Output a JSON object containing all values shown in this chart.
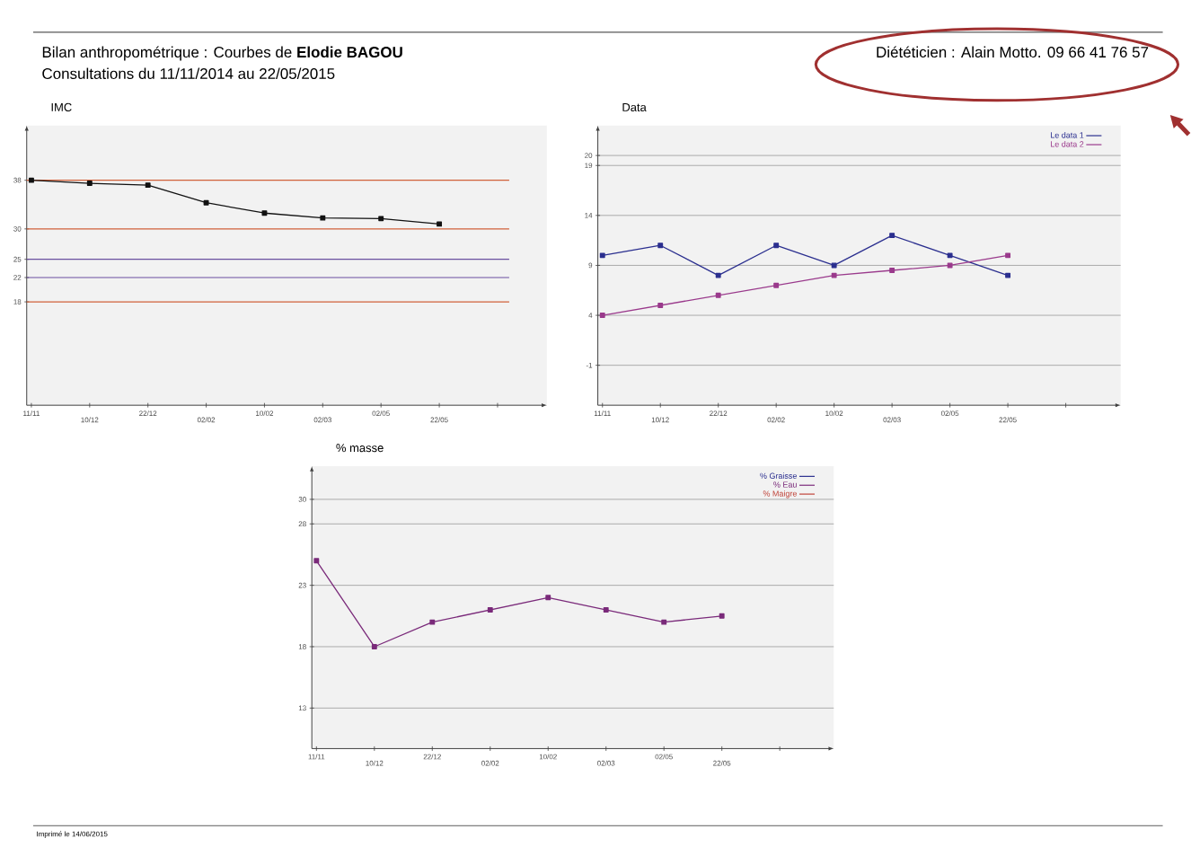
{
  "chart_data": [
    {
      "type": "other",
      "title": "Bilan anthropométrique : Courbes de  **Elodie BAGOU**",
      "subtitle": "Consultations du 11/11/2014 au 22/05/2015",
      "annotations": [
        "Diététicien : Alain Motto.  09 66 41 76 57",
        "Imprimé le 14/06/2015"
      ]
    },
    {
      "type": "line",
      "title": "IMC",
      "categories": [
        "11/11",
        "10/12",
        "22/12",
        "02/02",
        "10/02",
        "02/03",
        "02/05",
        "22/05",
        null
      ],
      "series": [
        {
          "color": "#111111",
          "values": [
            38,
            37.5,
            37.2,
            34.3,
            32.6,
            31.8,
            31.7,
            30.8,
            null
          ]
        }
      ],
      "ylim": [
        1,
        47
      ],
      "yticks": [
        38,
        30,
        25,
        22,
        18
      ],
      "marker": "square",
      "line_style": "solid",
      "ref_lines": [
        {
          "axis": "y",
          "value": 38,
          "color": "#d0603a"
        },
        {
          "axis": "y",
          "value": 30,
          "color": "#d0603a"
        },
        {
          "axis": "y",
          "value": 25,
          "color": "#6a4fa0"
        },
        {
          "axis": "y",
          "value": 22,
          "color": "#6a4fa0"
        },
        {
          "axis": "y",
          "value": 18,
          "color": "#d0603a"
        }
      ]
    },
    {
      "type": "line",
      "title": "Data",
      "categories": [
        "11/11",
        "10/12",
        "22/12",
        "02/02",
        "10/02",
        "02/03",
        "02/05",
        "22/05",
        null
      ],
      "series": [
        {
          "name": "Le data 1",
          "color": "#2b2f8f",
          "values": [
            10,
            11,
            8,
            11,
            9,
            12,
            10,
            8,
            null
          ]
        },
        {
          "name": "Le data 2",
          "color": "#9a3a8c",
          "values": [
            4,
            5,
            6,
            7,
            8,
            8.5,
            9,
            10,
            null
          ]
        }
      ],
      "ylim": [
        -5,
        23
      ],
      "yticks": [
        20,
        19,
        14,
        9,
        4,
        -1
      ],
      "grid": "y",
      "legend": "top right",
      "marker": "square",
      "line_style": "solid"
    },
    {
      "type": "line",
      "title": "% masse",
      "categories": [
        "11/11",
        "10/12",
        "22/12",
        "02/02",
        "10/02",
        "02/03",
        "02/05",
        "22/05",
        null
      ],
      "series": [
        {
          "name": "% Graisse",
          "color": "#2b2f8f",
          "values": [
            null,
            null,
            null,
            null,
            null,
            null,
            null,
            null,
            null
          ]
        },
        {
          "name": "% Eau",
          "color": "#7a2a7a",
          "values": [
            25,
            18,
            20,
            21,
            22,
            21,
            20,
            20.5,
            null
          ]
        },
        {
          "name": "% Maigre",
          "color": "#c0443a",
          "values": [
            null,
            null,
            null,
            null,
            null,
            null,
            null,
            null,
            null
          ]
        }
      ],
      "ylim": [
        9.7,
        32.7
      ],
      "yticks": [
        30,
        28,
        23,
        18,
        13
      ],
      "grid": "y",
      "legend": "top right",
      "marker": "square",
      "line_style": "solid"
    }
  ]
}
